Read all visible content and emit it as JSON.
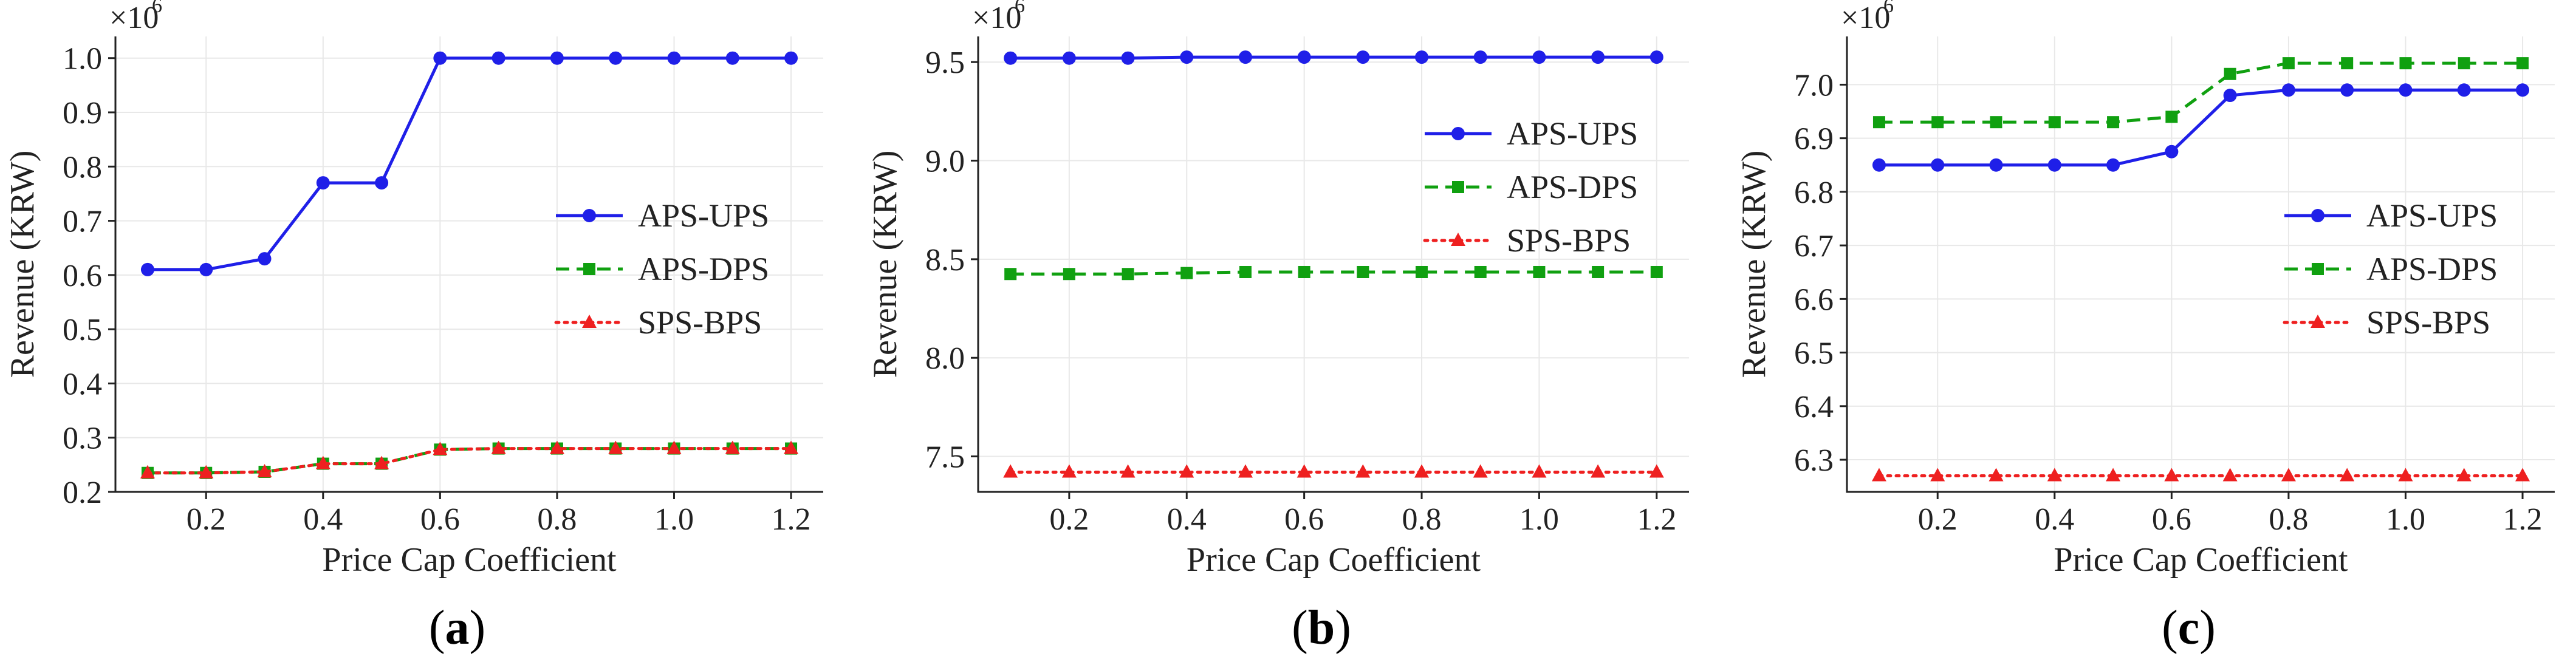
{
  "colors": {
    "APS-UPS": "#1f1fe8",
    "APS-DPS": "#10a010",
    "SPS-BPS": "#ee2020"
  },
  "chart_data": [
    {
      "type": "line",
      "panel_label": "a",
      "xlabel": "Price Cap Coefficient",
      "ylabel": "Revenue (KRW)",
      "scale_label": "×10",
      "scale_exp": "6",
      "x": [
        0.1,
        0.2,
        0.3,
        0.4,
        0.5,
        0.6,
        0.7,
        0.8,
        0.9,
        1.0,
        1.1,
        1.2
      ],
      "xlim": [
        0.045,
        1.255
      ],
      "xticks": [
        0.2,
        0.4,
        0.6,
        0.8,
        1.0,
        1.2
      ],
      "xtick_labels": [
        "0.2",
        "0.4",
        "0.6",
        "0.8",
        "1.0",
        "1.2"
      ],
      "ylim": [
        0.2,
        1.04
      ],
      "yticks": [
        0.2,
        0.3,
        0.4,
        0.5,
        0.6,
        0.7,
        0.8,
        0.9,
        1.0
      ],
      "ytick_labels": [
        "0.2",
        "0.3",
        "0.4",
        "0.5",
        "0.6",
        "0.7",
        "0.8",
        "0.9",
        "1.0"
      ],
      "legend_position": "center-right",
      "series": [
        {
          "name": "APS-UPS",
          "style": "solid",
          "marker": "circle",
          "values": [
            0.61,
            0.61,
            0.63,
            0.77,
            0.77,
            1.0,
            1.0,
            1.0,
            1.0,
            1.0,
            1.0,
            1.0
          ]
        },
        {
          "name": "APS-DPS",
          "style": "dashed",
          "marker": "square",
          "values": [
            0.235,
            0.235,
            0.237,
            0.252,
            0.252,
            0.278,
            0.28,
            0.28,
            0.28,
            0.28,
            0.28,
            0.28
          ]
        },
        {
          "name": "SPS-BPS",
          "style": "dotted",
          "marker": "triangle",
          "values": [
            0.235,
            0.235,
            0.237,
            0.252,
            0.252,
            0.278,
            0.28,
            0.28,
            0.28,
            0.28,
            0.28,
            0.28
          ]
        }
      ]
    },
    {
      "type": "line",
      "panel_label": "b",
      "xlabel": "Price Cap Coefficient",
      "ylabel": "Revenue (KRW)",
      "scale_label": "×10",
      "scale_exp": "6",
      "x": [
        0.1,
        0.2,
        0.3,
        0.4,
        0.5,
        0.6,
        0.7,
        0.8,
        0.9,
        1.0,
        1.1,
        1.2
      ],
      "xlim": [
        0.045,
        1.255
      ],
      "xticks": [
        0.2,
        0.4,
        0.6,
        0.8,
        1.0,
        1.2
      ],
      "xtick_labels": [
        "0.2",
        "0.4",
        "0.6",
        "0.8",
        "1.0",
        "1.2"
      ],
      "ylim": [
        7.32,
        9.63
      ],
      "yticks": [
        7.5,
        8.0,
        8.5,
        9.0,
        9.5
      ],
      "ytick_labels": [
        "7.5",
        "8.0",
        "8.5",
        "9.0",
        "9.5"
      ],
      "legend_position": "upper-right",
      "series": [
        {
          "name": "APS-UPS",
          "style": "solid",
          "marker": "circle",
          "values": [
            9.52,
            9.52,
            9.52,
            9.525,
            9.525,
            9.525,
            9.525,
            9.525,
            9.525,
            9.525,
            9.525,
            9.525
          ]
        },
        {
          "name": "APS-DPS",
          "style": "dashed",
          "marker": "square",
          "values": [
            8.425,
            8.425,
            8.425,
            8.43,
            8.435,
            8.435,
            8.435,
            8.435,
            8.435,
            8.435,
            8.435,
            8.435
          ]
        },
        {
          "name": "SPS-BPS",
          "style": "dotted",
          "marker": "triangle",
          "values": [
            7.42,
            7.42,
            7.42,
            7.42,
            7.42,
            7.42,
            7.42,
            7.42,
            7.42,
            7.42,
            7.42,
            7.42
          ]
        }
      ]
    },
    {
      "type": "line",
      "panel_label": "c",
      "xlabel": "Price Cap Coefficient",
      "ylabel": "Revenue (KRW)",
      "scale_label": "×10",
      "scale_exp": "6",
      "x": [
        0.1,
        0.2,
        0.3,
        0.4,
        0.5,
        0.6,
        0.7,
        0.8,
        0.9,
        1.0,
        1.1,
        1.2
      ],
      "xlim": [
        0.045,
        1.255
      ],
      "xticks": [
        0.2,
        0.4,
        0.6,
        0.8,
        1.0,
        1.2
      ],
      "xtick_labels": [
        "0.2",
        "0.4",
        "0.6",
        "0.8",
        "1.0",
        "1.2"
      ],
      "ylim": [
        6.24,
        7.09
      ],
      "yticks": [
        6.3,
        6.4,
        6.5,
        6.6,
        6.7,
        6.8,
        6.9,
        7.0
      ],
      "ytick_labels": [
        "6.3",
        "6.4",
        "6.5",
        "6.6",
        "6.7",
        "6.8",
        "6.9",
        "7.0"
      ],
      "legend_position": "center-right",
      "series": [
        {
          "name": "APS-UPS",
          "style": "solid",
          "marker": "circle",
          "values": [
            6.85,
            6.85,
            6.85,
            6.85,
            6.85,
            6.875,
            6.98,
            6.99,
            6.99,
            6.99,
            6.99,
            6.99
          ]
        },
        {
          "name": "APS-DPS",
          "style": "dashed",
          "marker": "square",
          "values": [
            6.93,
            6.93,
            6.93,
            6.93,
            6.93,
            6.94,
            7.02,
            7.04,
            7.04,
            7.04,
            7.04,
            7.04
          ]
        },
        {
          "name": "SPS-BPS",
          "style": "dotted",
          "marker": "triangle",
          "values": [
            6.27,
            6.27,
            6.27,
            6.27,
            6.27,
            6.27,
            6.27,
            6.27,
            6.27,
            6.27,
            6.27,
            6.27
          ]
        }
      ]
    }
  ]
}
